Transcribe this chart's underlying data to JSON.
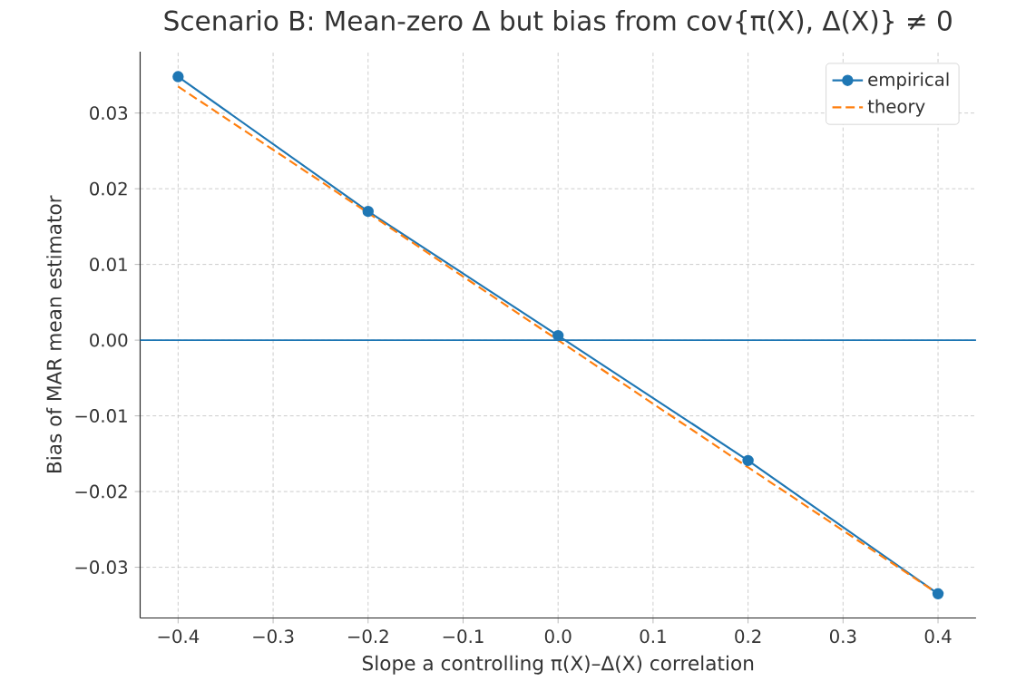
{
  "chart_data": {
    "type": "line",
    "title": "Scenario B: Mean-zero Δ but bias from cov{π(X), Δ(X)} ≠ 0",
    "xlabel": "Slope a controlling π(X)–Δ(X) correlation",
    "ylabel": "Bias of MAR mean estimator",
    "x": [
      -0.4,
      -0.2,
      0.0,
      0.2,
      0.4
    ],
    "series": [
      {
        "name": "empirical",
        "color": "#1f77b4",
        "values": [
          0.0348,
          0.017,
          0.0006,
          -0.0159,
          -0.0335
        ],
        "marker": "circle",
        "line_style": "solid"
      },
      {
        "name": "theory",
        "color": "#ff7f0e",
        "values": [
          0.0335,
          0.0168,
          0.0,
          -0.0168,
          -0.0335
        ],
        "marker": "none",
        "line_style": "dashed"
      }
    ],
    "xlim": [
      -0.44,
      0.44
    ],
    "ylim": [
      -0.0367,
      0.0381
    ],
    "xticks": [
      {
        "value": -0.4,
        "label": "−0.4"
      },
      {
        "value": -0.3,
        "label": "−0.3"
      },
      {
        "value": -0.2,
        "label": "−0.2"
      },
      {
        "value": -0.1,
        "label": "−0.1"
      },
      {
        "value": 0.0,
        "label": "0.0"
      },
      {
        "value": 0.1,
        "label": "0.1"
      },
      {
        "value": 0.2,
        "label": "0.2"
      },
      {
        "value": 0.3,
        "label": "0.3"
      },
      {
        "value": 0.4,
        "label": "0.4"
      }
    ],
    "yticks": [
      {
        "value": -0.03,
        "label": "−0.03"
      },
      {
        "value": -0.02,
        "label": "−0.02"
      },
      {
        "value": -0.01,
        "label": "−0.01"
      },
      {
        "value": 0.0,
        "label": "0.00"
      },
      {
        "value": 0.01,
        "label": "0.01"
      },
      {
        "value": 0.02,
        "label": "0.02"
      },
      {
        "value": 0.03,
        "label": "0.03"
      }
    ],
    "ref_lines": [
      {
        "axis": "y",
        "value": 0,
        "color": "#1f77b4",
        "line_style": "solid"
      }
    ],
    "grid": true,
    "legend": "top right"
  }
}
